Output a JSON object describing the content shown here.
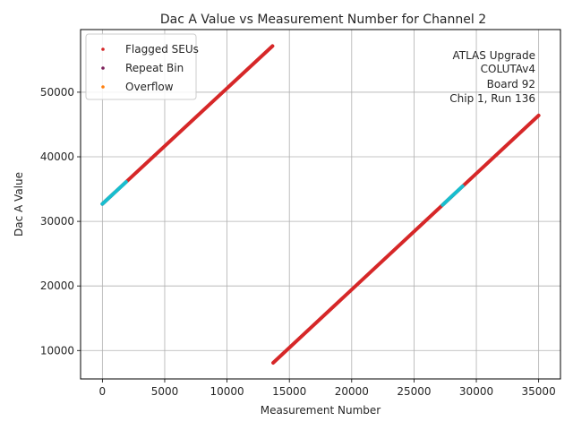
{
  "chart_data": {
    "type": "scatter",
    "title": "Dac A Value vs Measurement Number for Channel 2",
    "xlabel": "Measurement Number",
    "ylabel": "Dac A Value",
    "xlim": [
      -1750,
      36750
    ],
    "ylim": [
      5600,
      59700
    ],
    "x_ticks": [
      0,
      5000,
      10000,
      15000,
      20000,
      25000,
      30000,
      35000
    ],
    "y_ticks": [
      10000,
      20000,
      30000,
      40000,
      50000
    ],
    "x_tick_labels": [
      "0",
      "5000",
      "10000",
      "15000",
      "20000",
      "25000",
      "30000",
      "35000"
    ],
    "y_tick_labels": [
      "10000",
      "20000",
      "30000",
      "40000",
      "50000"
    ],
    "grid": true,
    "legend_position": "top-left",
    "annotation": [
      "ATLAS Upgrade",
      "COLUTAv4",
      "Board 92",
      "Chip 1, Run 136"
    ],
    "series": [
      {
        "name": "Flagged SEUs",
        "color": "#d62728",
        "segments": [
          {
            "x": [
              0,
              13650
            ],
            "y": [
              32700,
              57150
            ]
          },
          {
            "x": [
              13700,
              35000
            ],
            "y": [
              8100,
              46400
            ]
          }
        ]
      },
      {
        "name": "Repeat Bin",
        "color": "#7b1f5a",
        "segments": []
      },
      {
        "name": "Overflow",
        "color": "#ff7f0e",
        "segments": []
      }
    ],
    "highlight_series": {
      "color": "#17becf",
      "segments": [
        {
          "x": [
            0,
            1900
          ],
          "y": [
            32700,
            36100
          ]
        },
        {
          "x": [
            27300,
            28900
          ],
          "y": [
            32550,
            35450
          ]
        }
      ]
    }
  }
}
